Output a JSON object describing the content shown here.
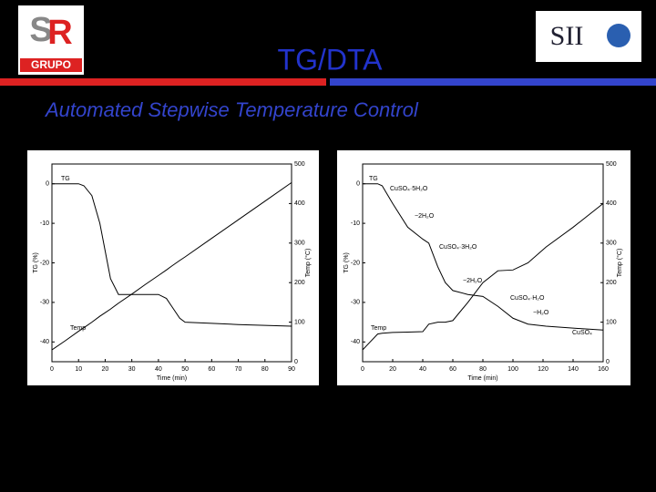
{
  "slide": {
    "logo_left": "GRUPO",
    "logo_right": "SII",
    "title": "TG/DTA",
    "subtitle": "Automated Stepwise Temperature Control"
  },
  "chart_data": [
    {
      "type": "line",
      "x": [
        0,
        5,
        10,
        12,
        15,
        18,
        20,
        22,
        25,
        30,
        35,
        40,
        43,
        45,
        48,
        50,
        60,
        70,
        80,
        90
      ],
      "series": [
        {
          "name": "TG",
          "color": "#000000",
          "values": [
            0,
            0,
            0,
            -0.5,
            -3,
            -10,
            -17,
            -24,
            -28,
            -28,
            -28,
            -28,
            -29,
            -31,
            -34,
            -35,
            -35.3,
            -35.6,
            -35.8,
            -36
          ]
        },
        {
          "name": "Temp",
          "color": "#000000",
          "axis": "y2",
          "values": [
            30,
            53,
            77,
            86,
            100,
            115,
            124,
            133,
            148,
            171,
            195,
            218,
            232,
            242,
            256,
            265,
            312,
            359,
            406,
            453
          ]
        }
      ],
      "xlabel": "Time (min)",
      "ylabel": "TG (%)",
      "y2label": "Temp (°C)",
      "xlim": [
        0,
        90
      ],
      "xticks": [
        0,
        10,
        20,
        30,
        40,
        50,
        60,
        70,
        80,
        90
      ],
      "ylim": [
        -45,
        5
      ],
      "yticks": [
        0,
        -10,
        -20,
        -30,
        -40
      ],
      "y2lim": [
        0,
        500
      ],
      "y2ticks": [
        0,
        100,
        200,
        300,
        400,
        500
      ]
    },
    {
      "type": "line",
      "x": [
        0,
        5,
        10,
        13,
        20,
        30,
        40,
        44,
        50,
        55,
        60,
        70,
        80,
        90,
        100,
        110,
        122,
        140,
        160
      ],
      "series": [
        {
          "name": "TG",
          "color": "#000000",
          "values": [
            0,
            0,
            0,
            -0.5,
            -5,
            -11,
            -14,
            -15,
            -21,
            -25,
            -27,
            -28,
            -28.5,
            -31,
            -34,
            -35.5,
            -36,
            -36.5,
            -37
          ]
        },
        {
          "name": "Temp",
          "color": "#000000",
          "axis": "y2",
          "values": [
            30,
            50,
            70,
            72,
            74,
            75,
            76,
            95,
            100,
            100,
            104,
            150,
            200,
            230,
            232,
            250,
            290,
            340,
            400
          ]
        }
      ],
      "xlabel": "Time (min)",
      "ylabel": "TG (%)",
      "y2label": "Temp (°C)",
      "xlim": [
        0,
        160
      ],
      "xticks": [
        0,
        20,
        40,
        60,
        80,
        100,
        120,
        140,
        160
      ],
      "ylim": [
        -45,
        5
      ],
      "yticks": [
        0,
        -10,
        -20,
        -30,
        -40
      ],
      "y2lim": [
        0,
        500
      ],
      "y2ticks": [
        0,
        100,
        200,
        300,
        400,
        500
      ],
      "annotations": [
        "CuSO₄·5H₂O",
        "−2H₂O",
        "CuSO₄·3H₂O",
        "−2H₂O",
        "CuSO₄·H₂O",
        "−H₂O",
        "CuSO₄"
      ]
    }
  ]
}
